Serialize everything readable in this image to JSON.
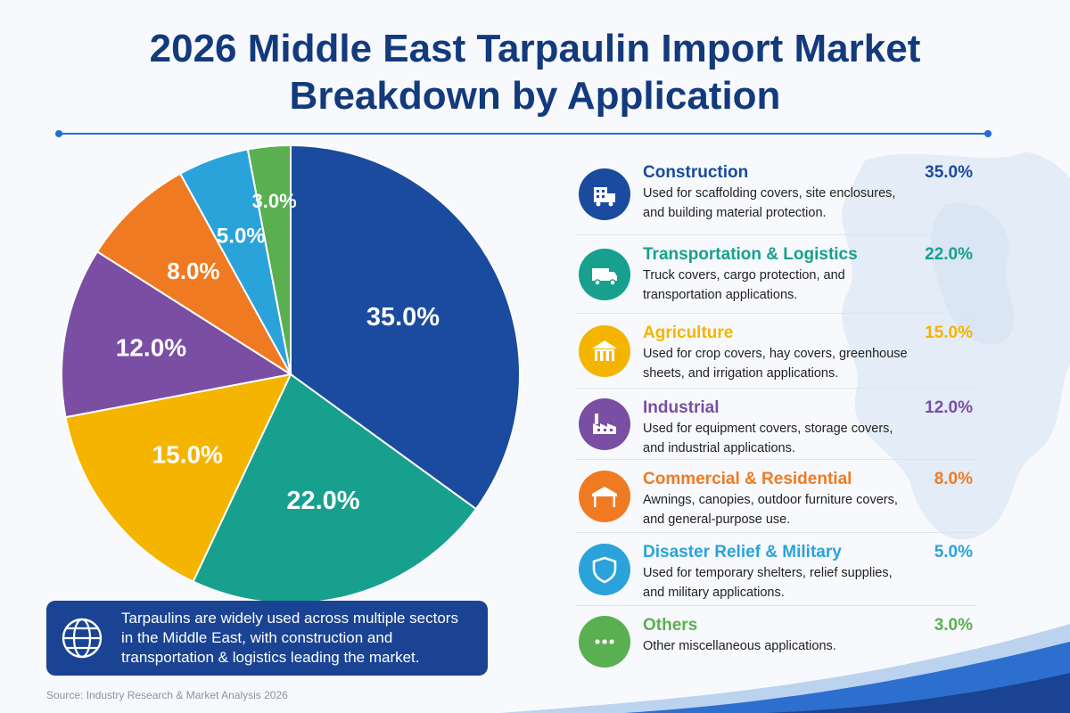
{
  "title_line1": "2026 Middle East Tarpaulin Import Market",
  "title_line2": "Breakdown by Application",
  "chart_data": {
    "type": "pie",
    "title": "2026 Middle East Tarpaulin Import Market Breakdown by Application",
    "unit": "%",
    "categories": [
      "Construction",
      "Transportation & Logistics",
      "Agriculture",
      "Industrial",
      "Commercial & Residential",
      "Disaster Relief & Military",
      "Others"
    ],
    "values": [
      35.0,
      22.0,
      15.0,
      12.0,
      8.0,
      5.0,
      3.0
    ],
    "labels": [
      "35.0%",
      "22.0%",
      "15.0%",
      "12.0%",
      "8.0%",
      "5.0%",
      "3.0%"
    ],
    "colors": [
      "#1a4b9e",
      "#17a08e",
      "#f5b400",
      "#7a4ea3",
      "#f07a22",
      "#2aa3db",
      "#5aaf50"
    ],
    "start": "12 o'clock, clockwise",
    "legend_position": "right"
  },
  "legend": [
    {
      "name": "Construction",
      "pct": "35.0%",
      "desc1": "Used for scaffolding covers, site enclosures,",
      "desc2": "and building material protection.",
      "color": "#1a4b9e",
      "icon": "building-crane-icon"
    },
    {
      "name": "Transportation & Logistics",
      "pct": "22.0%",
      "desc1": "Truck covers, cargo protection, and",
      "desc2": "transportation applications.",
      "color": "#17a08e",
      "icon": "truck-icon"
    },
    {
      "name": "Agriculture",
      "pct": "15.0%",
      "desc1": "Used for crop covers, hay covers, greenhouse",
      "desc2": "sheets, and irrigation applications.",
      "color": "#f5b400",
      "icon": "barn-icon"
    },
    {
      "name": "Industrial",
      "pct": "12.0%",
      "desc1": "Used for equipment covers, storage covers,",
      "desc2": "and industrial applications.",
      "color": "#7a4ea3",
      "icon": "factory-icon"
    },
    {
      "name": "Commercial & Residential",
      "pct": "8.0%",
      "desc1": "Awnings, canopies, outdoor furniture covers,",
      "desc2": "and general-purpose use.",
      "color": "#f07a22",
      "icon": "canopy-icon"
    },
    {
      "name": "Disaster Relief & Military",
      "pct": "5.0%",
      "desc1": "Used for temporary shelters, relief supplies,",
      "desc2": "and military applications.",
      "color": "#2aa3db",
      "icon": "shield-icon"
    },
    {
      "name": "Others",
      "pct": "3.0%",
      "desc1": "Other miscellaneous applications.",
      "desc2": "",
      "color": "#5aaf50",
      "icon": "ellipsis-icon"
    }
  ],
  "summary": {
    "line1": "Tarpaulins are widely used across multiple sectors",
    "line2": "in the Middle East, with construction and",
    "line3": "transportation & logistics leading the market.",
    "icon": "globe-icon"
  },
  "source": "Source: Industry Research & Market Analysis 2026"
}
